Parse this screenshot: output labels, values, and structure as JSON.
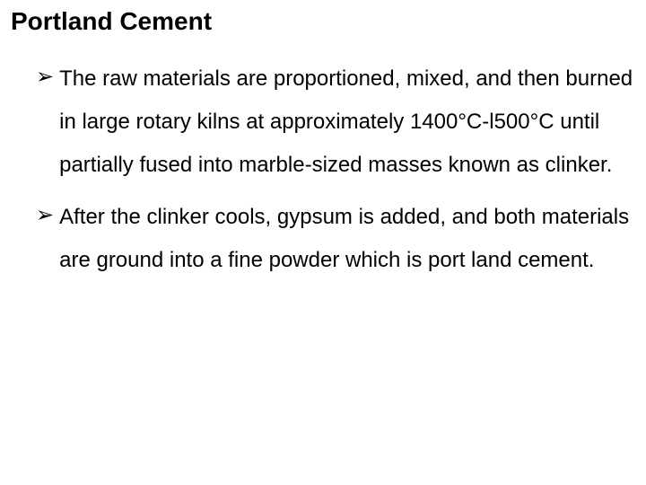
{
  "title": "Portland Cement",
  "bullets": [
    "The raw materials are proportioned, mixed, and then burned in large rotary kilns at approximately 1400°C-l500°C until partially fused into marble-sized masses known as clinker.",
    "After the clinker cools, gypsum is added, and both materials are ground into a fine powder which is port land cement."
  ],
  "styling": {
    "background_color": "#ffffff",
    "text_color": "#000000",
    "title_fontsize": 28,
    "title_fontweight": "bold",
    "body_fontsize": 24,
    "line_height": 48,
    "bullet_marker": "➢",
    "font_family": "Arial"
  }
}
